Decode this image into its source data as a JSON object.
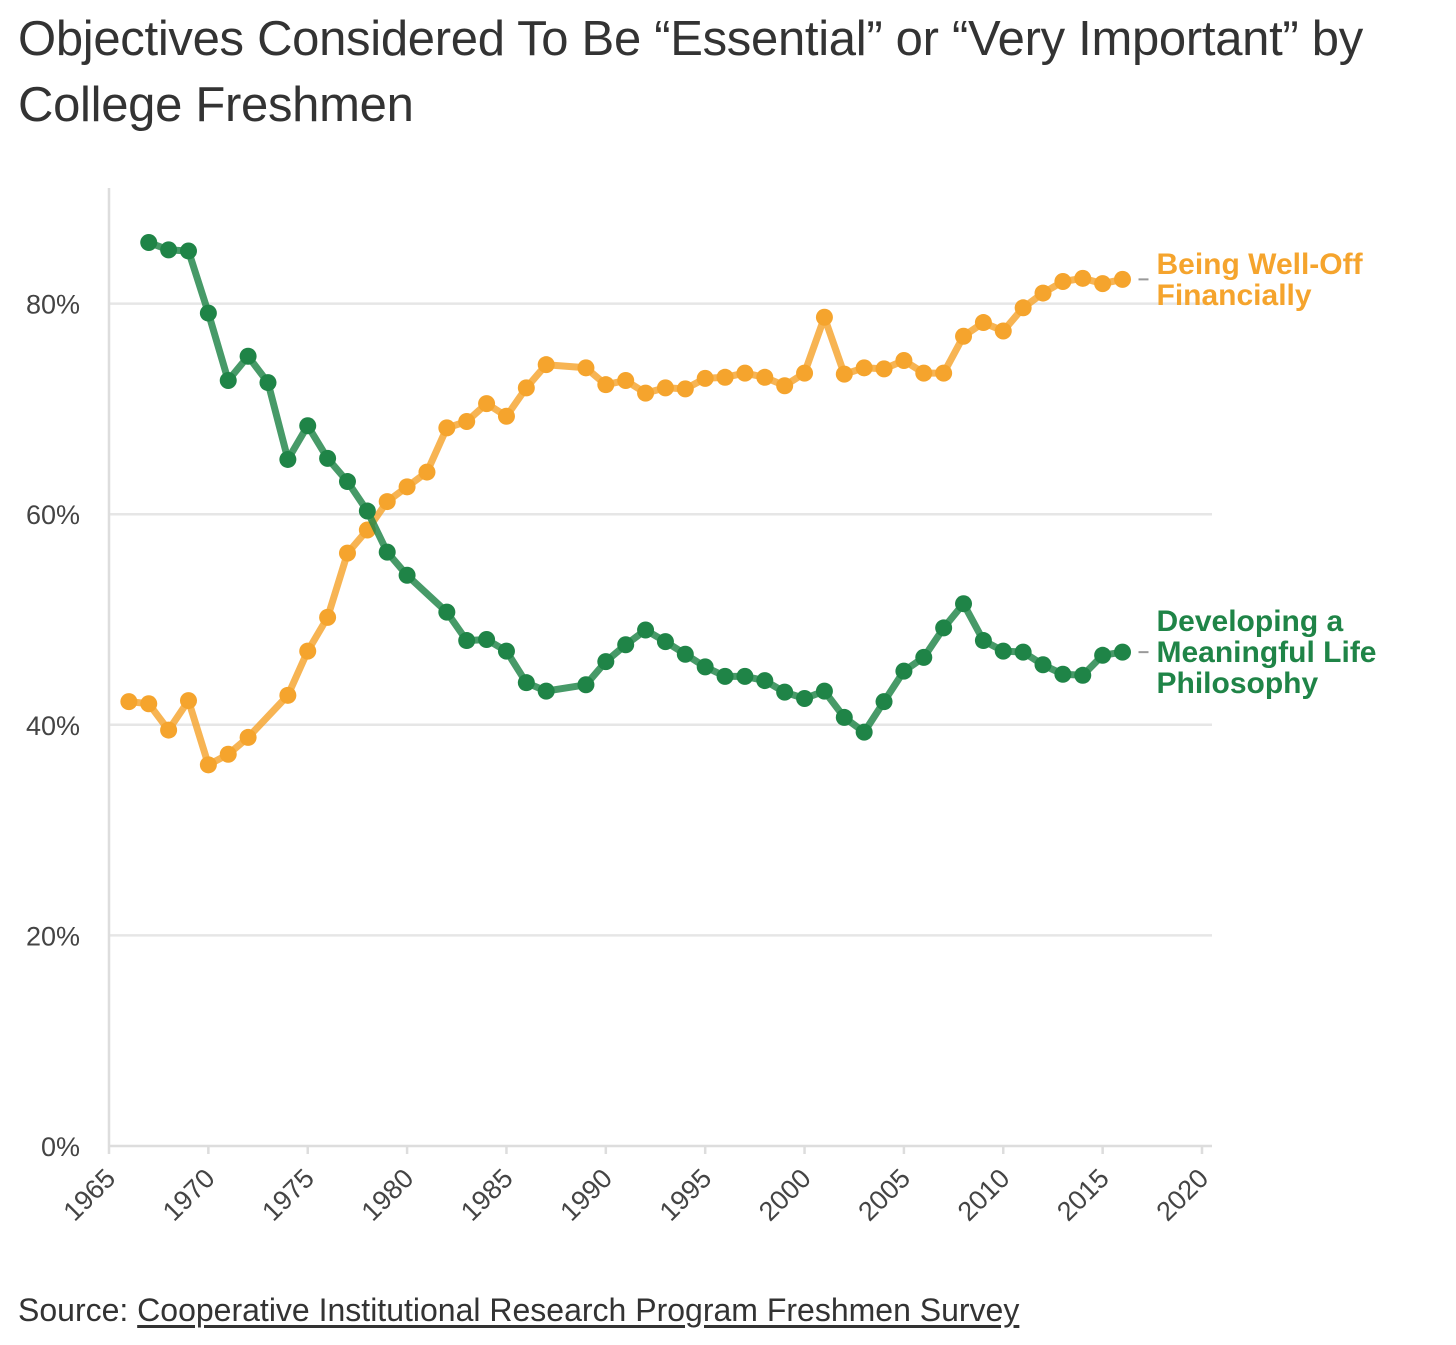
{
  "title": "Objectives Considered To Be “Essential” or “Very Important” by College Freshmen",
  "source": {
    "prefix": "Source: ",
    "link_text": "Cooperative Institutional Research Program Freshmen Survey"
  },
  "colors": {
    "well_off": "#f5a42d",
    "life_philosophy": "#1f8447",
    "grid": "#e6e6e6",
    "axis": "#dddddd",
    "text": "#333333"
  },
  "chart_data": {
    "type": "line",
    "title": "Objectives Considered To Be “Essential” or “Very Important” by College Freshmen",
    "xlabel": "",
    "ylabel": "",
    "xlim": [
      1965,
      2020
    ],
    "ylim": [
      0,
      90
    ],
    "x_ticks": [
      "1965",
      "1970",
      "1975",
      "1980",
      "1985",
      "1990",
      "1995",
      "2000",
      "2005",
      "2010",
      "2015",
      "2020"
    ],
    "y_ticks": [
      "0%",
      "20%",
      "40%",
      "60%",
      "80%"
    ],
    "grid": "horizontal",
    "markers": true,
    "series": [
      {
        "name": "Being Well-Off Financially",
        "name_lines": [
          "Being Well-Off",
          "Financially"
        ],
        "color": "#f5a42d",
        "points": [
          [
            1966,
            42.2
          ],
          [
            1967,
            42.0
          ],
          [
            1968,
            39.5
          ],
          [
            1969,
            42.3
          ],
          [
            1970,
            36.2
          ],
          [
            1971,
            37.2
          ],
          [
            1972,
            38.8
          ],
          [
            1974,
            42.8
          ],
          [
            1975,
            47.0
          ],
          [
            1976,
            50.2
          ],
          [
            1977,
            56.3
          ],
          [
            1978,
            58.5
          ],
          [
            1979,
            61.2
          ],
          [
            1980,
            62.6
          ],
          [
            1981,
            64.0
          ],
          [
            1982,
            68.2
          ],
          [
            1983,
            68.8
          ],
          [
            1984,
            70.5
          ],
          [
            1985,
            69.3
          ],
          [
            1986,
            72.0
          ],
          [
            1987,
            74.2
          ],
          [
            1989,
            73.9
          ],
          [
            1990,
            72.3
          ],
          [
            1991,
            72.7
          ],
          [
            1992,
            71.5
          ],
          [
            1993,
            72.0
          ],
          [
            1994,
            71.9
          ],
          [
            1995,
            72.9
          ],
          [
            1996,
            73.0
          ],
          [
            1997,
            73.4
          ],
          [
            1998,
            73.0
          ],
          [
            1999,
            72.2
          ],
          [
            2000,
            73.4
          ],
          [
            2001,
            78.7
          ],
          [
            2002,
            73.3
          ],
          [
            2003,
            73.9
          ],
          [
            2004,
            73.8
          ],
          [
            2005,
            74.6
          ],
          [
            2006,
            73.4
          ],
          [
            2007,
            73.4
          ],
          [
            2008,
            76.9
          ],
          [
            2009,
            78.2
          ],
          [
            2010,
            77.4
          ],
          [
            2011,
            79.6
          ],
          [
            2012,
            81.0
          ],
          [
            2013,
            82.1
          ],
          [
            2014,
            82.4
          ],
          [
            2015,
            81.9
          ],
          [
            2016,
            82.3
          ]
        ]
      },
      {
        "name": "Developing a Meaningful Life Philosophy",
        "name_lines": [
          "Developing a",
          "Meaningful Life",
          "Philosophy"
        ],
        "color": "#1f8447",
        "points": [
          [
            1967,
            85.8
          ],
          [
            1968,
            85.1
          ],
          [
            1969,
            85.0
          ],
          [
            1970,
            79.1
          ],
          [
            1971,
            72.7
          ],
          [
            1972,
            75.0
          ],
          [
            1973,
            72.5
          ],
          [
            1974,
            65.2
          ],
          [
            1975,
            68.4
          ],
          [
            1976,
            65.3
          ],
          [
            1977,
            63.1
          ],
          [
            1978,
            60.3
          ],
          [
            1979,
            56.4
          ],
          [
            1980,
            54.2
          ],
          [
            1982,
            50.7
          ],
          [
            1983,
            48.0
          ],
          [
            1984,
            48.1
          ],
          [
            1985,
            47.0
          ],
          [
            1986,
            44.0
          ],
          [
            1987,
            43.2
          ],
          [
            1989,
            43.8
          ],
          [
            1990,
            46.0
          ],
          [
            1991,
            47.6
          ],
          [
            1992,
            49.0
          ],
          [
            1993,
            47.9
          ],
          [
            1994,
            46.7
          ],
          [
            1995,
            45.5
          ],
          [
            1996,
            44.6
          ],
          [
            1997,
            44.6
          ],
          [
            1998,
            44.2
          ],
          [
            1999,
            43.1
          ],
          [
            2000,
            42.5
          ],
          [
            2001,
            43.2
          ],
          [
            2002,
            40.7
          ],
          [
            2003,
            39.3
          ],
          [
            2004,
            42.2
          ],
          [
            2005,
            45.1
          ],
          [
            2006,
            46.4
          ],
          [
            2007,
            49.2
          ],
          [
            2008,
            51.5
          ],
          [
            2009,
            48.0
          ],
          [
            2010,
            47.0
          ],
          [
            2011,
            46.9
          ],
          [
            2012,
            45.7
          ],
          [
            2013,
            44.8
          ],
          [
            2014,
            44.7
          ],
          [
            2015,
            46.6
          ],
          [
            2016,
            46.9
          ]
        ]
      }
    ]
  }
}
